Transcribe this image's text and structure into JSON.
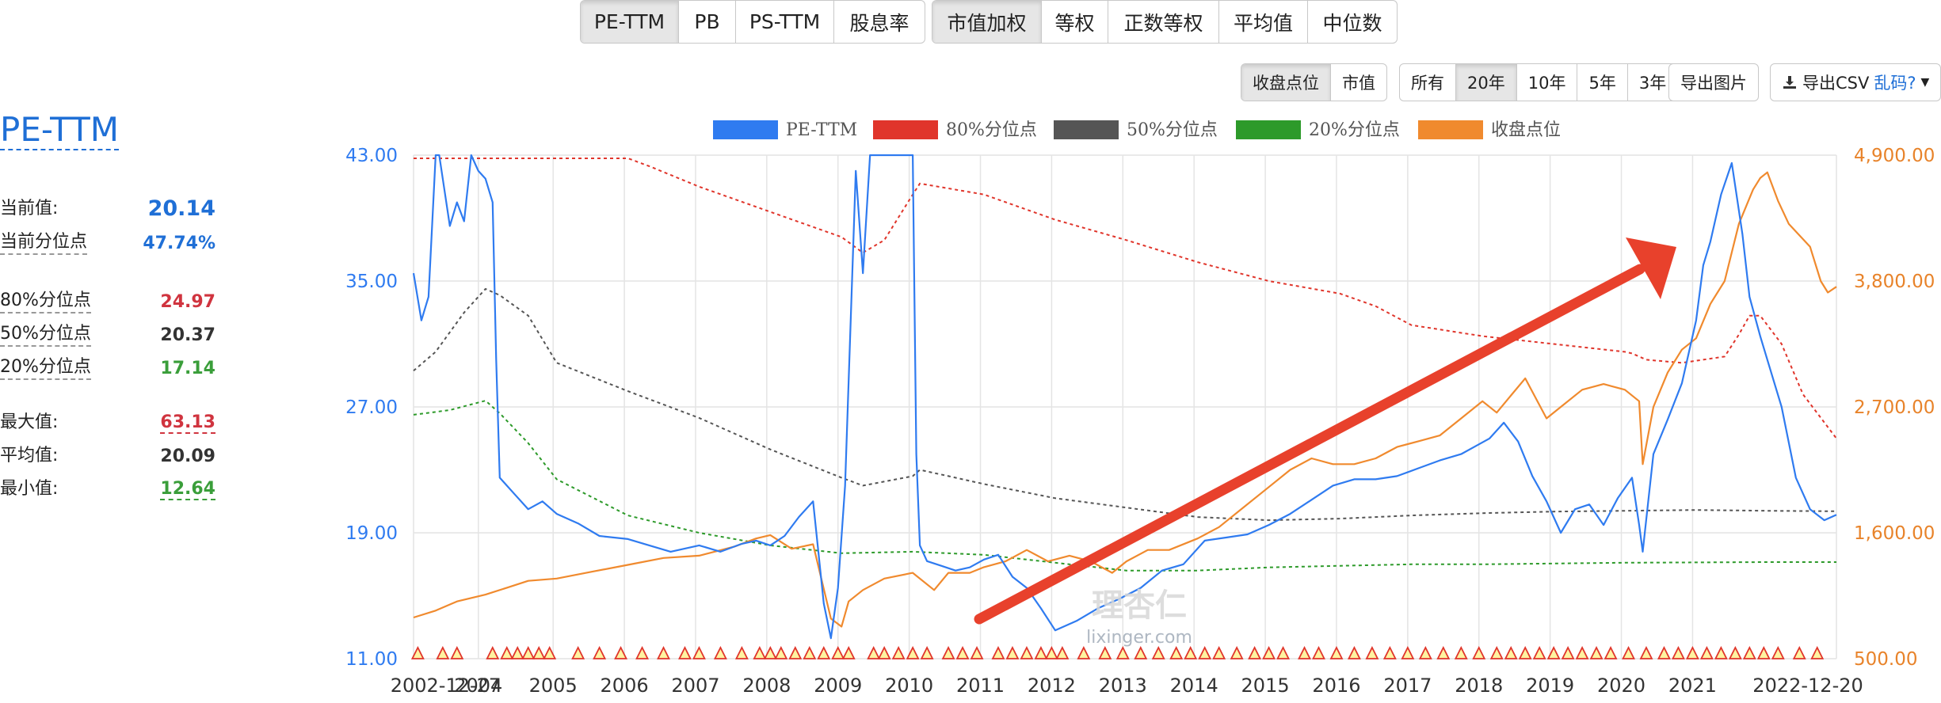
{
  "toolbar": {
    "metric_tabs": [
      "PE-TTM",
      "PB",
      "PS-TTM",
      "股息率"
    ],
    "weight_tabs": [
      "市值加权",
      "等权",
      "正数等权",
      "平均值",
      "中位数"
    ],
    "view_tabs": [
      "收盘点位",
      "市值"
    ],
    "range_tabs": [
      "所有",
      "20年",
      "10年",
      "5年",
      "3年"
    ],
    "export_image": "导出图片",
    "export_csv": "导出CSV",
    "garbled": "乱码?",
    "active_metric": "PE-TTM",
    "active_weight": "市值加权",
    "active_view": "收盘点位",
    "active_range": "20年"
  },
  "stats": {
    "title": "PE-TTM",
    "current_label": "当前值:",
    "current_value": "20.14",
    "current_pct_label": "当前分位点",
    "current_pct_value": "47.74%",
    "p80_label": "80%分位点",
    "p80_value": "24.97",
    "p50_label": "50%分位点",
    "p50_value": "20.37",
    "p20_label": "20%分位点",
    "p20_value": "17.14",
    "max_label": "最大值:",
    "max_value": "63.13",
    "avg_label": "平均值:",
    "avg_value": "20.09",
    "min_label": "最小值:",
    "min_value": "12.64"
  },
  "colors": {
    "pe": "#2f7bf0",
    "p80": "#e0352b",
    "p50": "#555555",
    "p20": "#2d9a2a",
    "close": "#f08a2e",
    "accent_blue": "#1f6fd6",
    "red_value": "#d0343f",
    "green_value": "#3a9e3a",
    "arrow": "#e8412c",
    "grid": "#e4e4e4"
  },
  "watermark": {
    "main": "理杏仁",
    "sub": "lixinger.com"
  },
  "chart_data": {
    "type": "line",
    "x_start": "2002-12-27",
    "x_end": "2022-12-20",
    "x_ticks": [
      "2002-12-27",
      "2004",
      "2005",
      "2006",
      "2007",
      "2008",
      "2009",
      "2010",
      "2011",
      "2012",
      "2013",
      "2014",
      "2015",
      "2016",
      "2017",
      "2018",
      "2019",
      "2020",
      "2021",
      "2022-12-20"
    ],
    "y_left": {
      "ticks": [
        "11.00",
        "19.00",
        "27.00",
        "35.00",
        "43.00"
      ],
      "range": [
        11,
        43
      ]
    },
    "y_right": {
      "ticks": [
        "500.00",
        "1,600.00",
        "2,700.00",
        "3,800.00",
        "4,900.00"
      ],
      "range": [
        500,
        4900
      ]
    },
    "legend": [
      "PE-TTM",
      "80%分位点",
      "50%分位点",
      "20%分位点",
      "收盘点位"
    ],
    "grid": true,
    "series": [
      {
        "name": "PE-TTM",
        "axis": "left",
        "x": [
          2002.99,
          2003.1,
          2003.2,
          2003.3,
          2003.35,
          2003.5,
          2003.6,
          2003.7,
          2003.8,
          2003.9,
          2004.0,
          2004.1,
          2004.15,
          2004.2,
          2004.4,
          2004.6,
          2004.8,
          2005.0,
          2005.3,
          2005.6,
          2006.0,
          2006.3,
          2006.6,
          2007.0,
          2007.3,
          2007.6,
          2007.8,
          2008.0,
          2008.2,
          2008.4,
          2008.6,
          2008.75,
          2008.85,
          2008.95,
          2009.05,
          2009.2,
          2009.3,
          2009.4,
          2009.45,
          2009.5,
          2009.6,
          2010.0,
          2010.05,
          2010.1,
          2010.2,
          2010.4,
          2010.6,
          2010.8,
          2011.0,
          2011.2,
          2011.4,
          2011.6,
          2011.8,
          2012.0,
          2012.3,
          2012.6,
          2012.9,
          2013.2,
          2013.5,
          2013.8,
          2014.1,
          2014.4,
          2014.7,
          2015.0,
          2015.3,
          2015.6,
          2015.9,
          2016.2,
          2016.5,
          2016.8,
          2017.1,
          2017.4,
          2017.7,
          2017.9,
          2018.1,
          2018.3,
          2018.5,
          2018.7,
          2018.9,
          2019.1,
          2019.3,
          2019.5,
          2019.7,
          2019.9,
          2020.1,
          2020.2,
          2020.25,
          2020.4,
          2020.6,
          2020.8,
          2021.0,
          2021.1,
          2021.2,
          2021.35,
          2021.5,
          2021.65,
          2021.75,
          2021.9,
          2022.0,
          2022.2,
          2022.4,
          2022.6,
          2022.8,
          2022.97
        ],
        "y": [
          35.5,
          32.5,
          34,
          43,
          43,
          38.5,
          40,
          38.8,
          43,
          42,
          41.5,
          40,
          30,
          22.5,
          21.5,
          20.5,
          21,
          20.2,
          19.6,
          18.8,
          18.6,
          18.2,
          17.8,
          18.2,
          17.8,
          18.3,
          18.5,
          18.2,
          18.8,
          20,
          21,
          14.5,
          12.3,
          15.5,
          22,
          42,
          35.5,
          43,
          43,
          43,
          43,
          43,
          24,
          18.2,
          17.2,
          16.9,
          16.6,
          16.8,
          17.3,
          17.6,
          16.2,
          15.5,
          14.2,
          12.8,
          13.4,
          14.2,
          14.8,
          15.5,
          16.6,
          17,
          18.5,
          18.7,
          18.9,
          19.5,
          20.2,
          21.1,
          22,
          22.4,
          22.4,
          22.6,
          23.1,
          23.6,
          24,
          24.5,
          25,
          26,
          24.8,
          22.6,
          21,
          19,
          20.5,
          20.8,
          19.5,
          21.2,
          22.5,
          19.5,
          17.8,
          24,
          26.2,
          28.5,
          32.5,
          36,
          37.5,
          40.5,
          42.5,
          38,
          34,
          31.5,
          30,
          27,
          22.5,
          20.5,
          19.8,
          20.14
        ]
      },
      {
        "name": "80%分位点",
        "axis": "left",
        "x": [
          2002.99,
          2006.0,
          2006.3,
          2007.0,
          2008.0,
          2009.0,
          2009.3,
          2009.6,
          2010.0,
          2010.1,
          2011.0,
          2012.0,
          2013.0,
          2014.0,
          2015.0,
          2016.0,
          2016.5,
          2017.0,
          2018.0,
          2019.0,
          2020.0,
          2020.1,
          2020.3,
          2020.8,
          2021.4,
          2021.6,
          2021.75,
          2021.9,
          2022.2,
          2022.5,
          2022.97
        ],
        "y": [
          42.8,
          42.8,
          42.3,
          41,
          39.4,
          37.8,
          36.8,
          37.6,
          40.5,
          41.2,
          40.5,
          38.9,
          37.6,
          36.2,
          35,
          34.2,
          33.4,
          32.2,
          31.5,
          31,
          30.5,
          30.4,
          30,
          29.8,
          30.2,
          31.6,
          32.8,
          32.8,
          31,
          27.8,
          25
        ]
      },
      {
        "name": "50%分位点",
        "axis": "left",
        "x": [
          2002.99,
          2003.3,
          2003.7,
          2004.0,
          2004.2,
          2004.6,
          2005.0,
          2006.0,
          2007.0,
          2008.0,
          2009.0,
          2009.3,
          2010.0,
          2010.1,
          2010.5,
          2011.0,
          2012.0,
          2013.0,
          2014.0,
          2015.0,
          2016.0,
          2017.0,
          2018.0,
          2019.0,
          2020.0,
          2021.0,
          2022.0,
          2022.97
        ],
        "y": [
          29.3,
          30.5,
          33,
          34.5,
          34.1,
          32.8,
          29.8,
          28,
          26.3,
          24.3,
          22.5,
          22,
          22.6,
          23,
          22.6,
          22.1,
          21.2,
          20.6,
          20,
          19.8,
          19.9,
          20.1,
          20.25,
          20.35,
          20.4,
          20.45,
          20.4,
          20.37
        ]
      },
      {
        "name": "20%分位点",
        "axis": "left",
        "x": [
          2002.99,
          2003.5,
          2004.0,
          2004.2,
          2004.6,
          2005.0,
          2006.0,
          2007.0,
          2008.0,
          2009.0,
          2010.0,
          2011.0,
          2012.0,
          2013.0,
          2014.0,
          2015.0,
          2016.0,
          2017.0,
          2018.0,
          2019.0,
          2020.0,
          2021.0,
          2022.0,
          2022.97
        ],
        "y": [
          26.5,
          26.8,
          27.4,
          26.6,
          24.7,
          22.4,
          20.1,
          19,
          18.2,
          17.7,
          17.8,
          17.6,
          17.1,
          16.6,
          16.6,
          16.8,
          16.9,
          17,
          17,
          17.05,
          17.1,
          17.12,
          17.14,
          17.14
        ]
      },
      {
        "name": "收盘点位",
        "axis": "right",
        "x": [
          2002.99,
          2003.3,
          2003.6,
          2004.0,
          2004.3,
          2004.6,
          2005.0,
          2005.5,
          2006.0,
          2006.5,
          2007.0,
          2007.5,
          2007.8,
          2008.0,
          2008.3,
          2008.6,
          2008.85,
          2009.0,
          2009.1,
          2009.3,
          2009.6,
          2010.0,
          2010.3,
          2010.5,
          2010.8,
          2011.0,
          2011.3,
          2011.6,
          2011.9,
          2012.2,
          2012.5,
          2012.8,
          2013.0,
          2013.3,
          2013.6,
          2014.0,
          2014.3,
          2014.6,
          2015.0,
          2015.3,
          2015.6,
          2015.9,
          2016.2,
          2016.5,
          2016.8,
          2017.1,
          2017.4,
          2017.7,
          2018.0,
          2018.2,
          2018.4,
          2018.6,
          2018.9,
          2019.1,
          2019.4,
          2019.7,
          2020.0,
          2020.2,
          2020.25,
          2020.4,
          2020.6,
          2020.8,
          2021.0,
          2021.2,
          2021.4,
          2021.6,
          2021.8,
          2021.9,
          2022.0,
          2022.15,
          2022.3,
          2022.45,
          2022.6,
          2022.75,
          2022.85,
          2022.97
        ],
        "y": [
          860,
          920,
          1000,
          1060,
          1120,
          1180,
          1200,
          1260,
          1320,
          1380,
          1400,
          1480,
          1550,
          1580,
          1460,
          1500,
          850,
          780,
          1000,
          1100,
          1200,
          1250,
          1100,
          1250,
          1250,
          1300,
          1350,
          1450,
          1350,
          1400,
          1350,
          1250,
          1350,
          1450,
          1450,
          1550,
          1650,
          1800,
          2000,
          2150,
          2250,
          2200,
          2200,
          2250,
          2350,
          2400,
          2450,
          2600,
          2750,
          2650,
          2800,
          2950,
          2600,
          2700,
          2850,
          2900,
          2850,
          2750,
          2200,
          2700,
          3000,
          3200,
          3300,
          3600,
          3800,
          4300,
          4600,
          4700,
          4750,
          4500,
          4300,
          4200,
          4100,
          3800,
          3700,
          3750
        ]
      }
    ],
    "markers": "triangle markers along x-axis baseline"
  }
}
